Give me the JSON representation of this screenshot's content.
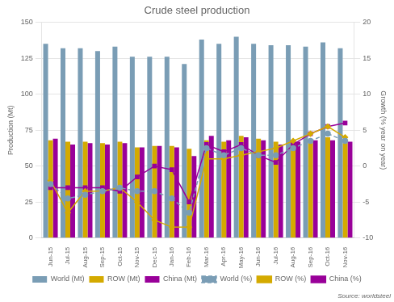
{
  "chart_data": {
    "type": "bar",
    "title": "Crude steel production",
    "categories": [
      "Jun-15",
      "Jul-15",
      "Aug-15",
      "Sep-15",
      "Oct-15",
      "Nov-15",
      "Dec-15",
      "Jan-16",
      "Feb-16",
      "Mar-16",
      "Apr-16",
      "May-16",
      "Jun-16",
      "Jul-16",
      "Aug-16",
      "Sep-16",
      "Oct-16",
      "Nov-16"
    ],
    "series": [
      {
        "name": "World (Mt)",
        "color": "#7a9db5",
        "values": [
          135,
          132,
          132,
          130,
          133,
          126,
          126,
          126,
          121,
          138,
          135,
          140,
          135,
          134,
          134,
          133,
          136,
          132
        ]
      },
      {
        "name": "ROW (Mt)",
        "color": "#d4aa00",
        "values": [
          68,
          67,
          67,
          66,
          67,
          63,
          64,
          64,
          62,
          68,
          67,
          71,
          69,
          67,
          67,
          67,
          70,
          66
        ]
      },
      {
        "name": "China (Mt)",
        "color": "#990099",
        "values": [
          69,
          65,
          66,
          65,
          66,
          63,
          64,
          63,
          57,
          71,
          68,
          70,
          68,
          65,
          67,
          68,
          68,
          67
        ]
      },
      {
        "name": "World (%)",
        "type": "line",
        "axis": "y2",
        "color": "#7a9db5",
        "marker": "circle",
        "line_style": "dashed",
        "values": [
          -2.5,
          -4.5,
          -4.0,
          -3.5,
          -3.0,
          -3.5,
          -3.5,
          -4.5,
          -6.5,
          2.5,
          1.5,
          2.5,
          1.5,
          1.5,
          2.5,
          3.5,
          4.5,
          3.5
        ]
      },
      {
        "name": "ROW (%)",
        "type": "line",
        "axis": "y2",
        "color": "#d4aa00",
        "marker": "diamond",
        "line_style": "solid",
        "values": [
          -2.0,
          -6.5,
          -3.5,
          -3.5,
          -3.0,
          -5.0,
          -7.5,
          -8.5,
          -8.5,
          1.0,
          1.0,
          1.5,
          2.0,
          2.5,
          3.5,
          4.5,
          5.5,
          4.0
        ]
      },
      {
        "name": "China (%)",
        "type": "line",
        "axis": "y2",
        "color": "#990099",
        "marker": "square",
        "line_style": "solid",
        "values": [
          -3.0,
          -3.0,
          -3.0,
          -3.0,
          -3.5,
          -1.5,
          0.0,
          -0.5,
          -5.0,
          3.0,
          2.0,
          3.0,
          1.5,
          0.5,
          3.0,
          4.5,
          5.5,
          6.0
        ]
      }
    ],
    "ylabel": "Production (Mt)",
    "y2label": "Growth (% year on year)",
    "ylim": [
      0,
      150
    ],
    "yticks": [
      0,
      25,
      50,
      75,
      100,
      125,
      150
    ],
    "y2lim": [
      -10,
      20
    ],
    "y2ticks": [
      -10,
      -5,
      0,
      5,
      10,
      15,
      20
    ],
    "grid": true,
    "legend": "bottom",
    "annotations": [
      "Source: worldsteel"
    ]
  }
}
